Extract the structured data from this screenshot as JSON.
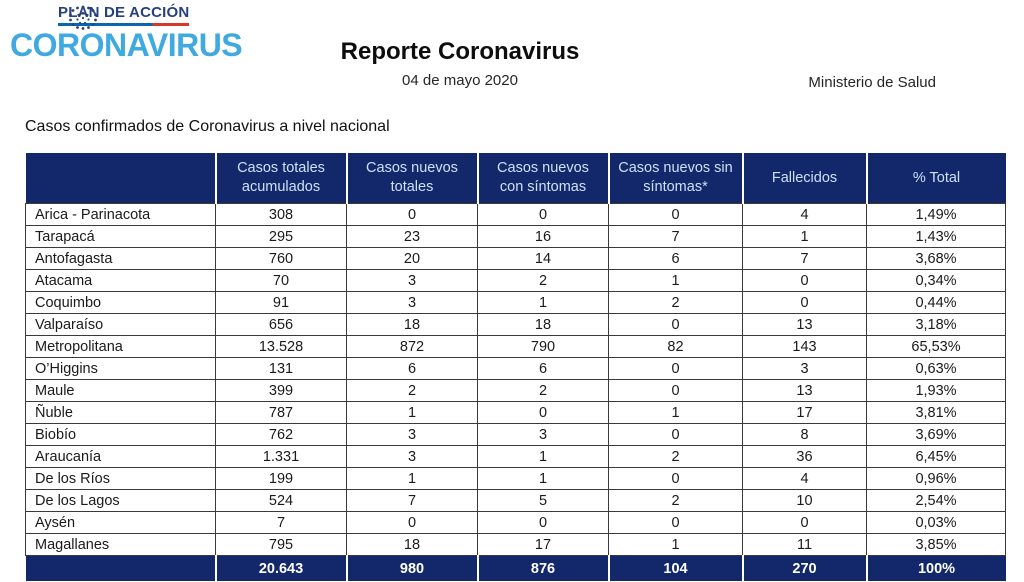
{
  "logo": {
    "plan_label": "PLAN DE ACCIÓN",
    "brand": "CORONAVIRUS",
    "colors": {
      "brand_blue": "#3FA9E0",
      "navy": "#26417E",
      "underline_blue": "#0A66B0",
      "underline_red": "#D8372A"
    }
  },
  "header": {
    "title": "Reporte Coronavirus",
    "date": "04 de mayo 2020",
    "org": "Ministerio de Salud"
  },
  "section_title": "Casos confirmados de Coronavirus a nivel nacional",
  "table": {
    "colors": {
      "header_bg": "#12286B",
      "header_text": "#CFE0F5",
      "total_bg": "#12286B",
      "total_text": "#FFFFFF",
      "body_border": "#3A3A3A"
    },
    "columns": [
      "",
      "Casos totales acumulados",
      "Casos nuevos totales",
      "Casos nuevos con síntomas",
      "Casos nuevos sin síntomas*",
      "Fallecidos",
      "% Total"
    ],
    "rows": [
      {
        "region": "Arica - Parinacota",
        "values": [
          "308",
          "0",
          "0",
          "0",
          "4",
          "1,49%"
        ]
      },
      {
        "region": "Tarapacá",
        "values": [
          "295",
          "23",
          "16",
          "7",
          "1",
          "1,43%"
        ]
      },
      {
        "region": "Antofagasta",
        "values": [
          "760",
          "20",
          "14",
          "6",
          "7",
          "3,68%"
        ]
      },
      {
        "region": "Atacama",
        "values": [
          "70",
          "3",
          "2",
          "1",
          "0",
          "0,34%"
        ]
      },
      {
        "region": "Coquimbo",
        "values": [
          "91",
          "3",
          "1",
          "2",
          "0",
          "0,44%"
        ]
      },
      {
        "region": "Valparaíso",
        "values": [
          "656",
          "18",
          "18",
          "0",
          "13",
          "3,18%"
        ]
      },
      {
        "region": "Metropolitana",
        "values": [
          "13.528",
          "872",
          "790",
          "82",
          "143",
          "65,53%"
        ]
      },
      {
        "region": "O’Higgins",
        "values": [
          "131",
          "6",
          "6",
          "0",
          "3",
          "0,63%"
        ]
      },
      {
        "region": "Maule",
        "values": [
          "399",
          "2",
          "2",
          "0",
          "13",
          "1,93%"
        ]
      },
      {
        "region": "Ñuble",
        "values": [
          "787",
          "1",
          "0",
          "1",
          "17",
          "3,81%"
        ]
      },
      {
        "region": "Biobío",
        "values": [
          "762",
          "3",
          "3",
          "0",
          "8",
          "3,69%"
        ]
      },
      {
        "region": "Araucanía",
        "values": [
          "1.331",
          "3",
          "1",
          "2",
          "36",
          "6,45%"
        ]
      },
      {
        "region": "De los Ríos",
        "values": [
          "199",
          "1",
          "1",
          "0",
          "4",
          "0,96%"
        ]
      },
      {
        "region": "De los Lagos",
        "values": [
          "524",
          "7",
          "5",
          "2",
          "10",
          "2,54%"
        ]
      },
      {
        "region": "Aysén",
        "values": [
          "7",
          "0",
          "0",
          "0",
          "0",
          "0,03%"
        ]
      },
      {
        "region": "Magallanes",
        "values": [
          "795",
          "18",
          "17",
          "1",
          "11",
          "3,85%"
        ]
      }
    ],
    "totals": {
      "region": "",
      "values": [
        "20.643",
        "980",
        "876",
        "104",
        "270",
        "100%"
      ]
    }
  }
}
